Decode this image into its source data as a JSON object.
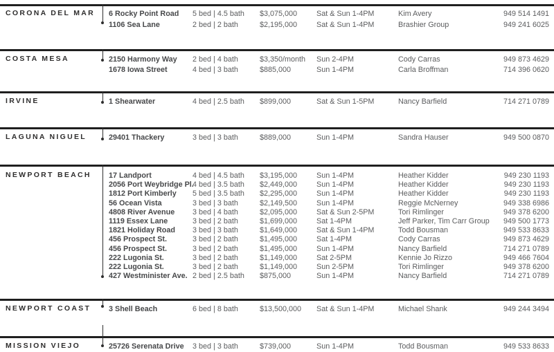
{
  "sections": [
    {
      "city": "CORONA DEL MAR",
      "listings": [
        {
          "address": "6 Rocky Point Road",
          "bedbath": "5 bed | 4.5 bath",
          "price": "$3,075,000",
          "time": "Sat & Sun 1-4PM",
          "agent": "Kim Avery",
          "phone": "949 514 1491"
        },
        {
          "address": "1106 Sea Lane",
          "bedbath": "2 bed | 2 bath",
          "price": "$2,195,000",
          "time": "Sat & Sun 1-4PM",
          "agent": "Brashier Group",
          "phone": "949 241 6025"
        }
      ]
    },
    {
      "city": "COSTA MESA",
      "listings": [
        {
          "address": "2150 Harmony Way",
          "bedbath": "2 bed | 4 bath",
          "price": "$3,350/month",
          "time": "Sun 2-4PM",
          "agent": "Cody Carras",
          "phone": "949 873 4629"
        },
        {
          "address": "1678 Iowa Street",
          "bedbath": "4 bed | 3 bath",
          "price": "$885,000",
          "time": "Sun 1-4PM",
          "agent": "Carla Broffman",
          "phone": "714 396 0620"
        }
      ]
    },
    {
      "city": "IRVINE",
      "listings": [
        {
          "address": "1 Shearwater",
          "bedbath": "4 bed | 2.5 bath",
          "price": "$899,000",
          "time": "Sat & Sun 1-5PM",
          "agent": "Nancy Barfield",
          "phone": "714 271 0789"
        }
      ]
    },
    {
      "city": "LAGUNA NIGUEL",
      "listings": [
        {
          "address": "29401 Thackery",
          "bedbath": "3 bed | 3 bath",
          "price": "$889,000",
          "time": "Sun 1-4PM",
          "agent": "Sandra Hauser",
          "phone": "949 500 0870"
        }
      ]
    },
    {
      "city": "NEWPORT BEACH",
      "listings": [
        {
          "address": "17 Landport",
          "bedbath": "4 bed | 4.5 bath",
          "price": "$3,195,000",
          "time": "Sun 1-4PM",
          "agent": "Heather Kidder",
          "phone": "949 230 1193"
        },
        {
          "address": "2056 Port Weybridge Pl.",
          "bedbath": "4 bed | 3.5 bath",
          "price": "$2,449,000",
          "time": "Sun 1-4PM",
          "agent": "Heather Kidder",
          "phone": "949 230 1193"
        },
        {
          "address": "1812 Port Kimberly",
          "bedbath": "5 bed | 3.5 bath",
          "price": "$2,295,000",
          "time": "Sun 1-4PM",
          "agent": "Heather Kidder",
          "phone": "949 230 1193"
        },
        {
          "address": "56 Ocean Vista",
          "bedbath": "3 bed | 3 bath",
          "price": "$2,149,500",
          "time": "Sun 1-4PM",
          "agent": "Reggie McNerney",
          "phone": "949 338 6986"
        },
        {
          "address": "4808 River Avenue",
          "bedbath": "3 bed | 4 bath",
          "price": "$2,095,000",
          "time": "Sat & Sun 2-5PM",
          "agent": "Tori Rimlinger",
          "phone": "949 378 6200"
        },
        {
          "address": "1119 Essex Lane",
          "bedbath": "3 bed | 2 bath",
          "price": "$1,699,000",
          "time": "Sat 1-4PM",
          "agent": "Jeff Parker, Tim Carr Group",
          "phone": "949 500 1773"
        },
        {
          "address": "1821 Holiday Road",
          "bedbath": "3 bed | 3 bath",
          "price": "$1,649,000",
          "time": "Sat & Sun 1-4PM",
          "agent": "Todd Bousman",
          "phone": "949 533 8633"
        },
        {
          "address": "456 Prospect St.",
          "bedbath": "3 bed | 2 bath",
          "price": "$1,495,000",
          "time": "Sat 1-4PM",
          "agent": "Cody Carras",
          "phone": "949 873 4629"
        },
        {
          "address": "456 Prospect St.",
          "bedbath": "3 bed | 2 bath",
          "price": "$1,495,000",
          "time": "Sun 1-4PM",
          "agent": "Nancy Barfield",
          "phone": "714 271 0789"
        },
        {
          "address": "222 Lugonia St.",
          "bedbath": "3 bed | 2 bath",
          "price": "$1,149,000",
          "time": "Sat 2-5PM",
          "agent": "Kennie Jo Rizzo",
          "phone": "949 466 7604"
        },
        {
          "address": "222 Lugonia St.",
          "bedbath": "3 bed | 2 bath",
          "price": "$1,149,000",
          "time": "Sun 2-5PM",
          "agent": "Tori Rimlinger",
          "phone": "949 378 6200"
        },
        {
          "address": "427 Westminister Ave.",
          "bedbath": "2 bed | 2.5 bath",
          "price": "$875,000",
          "time": "Sun 1-4PM",
          "agent": "Nancy Barfield",
          "phone": "714 271 0789"
        }
      ]
    },
    {
      "city": "NEWPORT COAST",
      "listings": [
        {
          "address": "3 Shell Beach",
          "bedbath": "6 bed | 8 bath",
          "price": "$13,500,000",
          "time": "Sat & Sun 1-4PM",
          "agent": "Michael Shank",
          "phone": "949 244 3494"
        }
      ]
    },
    {
      "city": "MISSION VIEJO",
      "listings": [
        {
          "address": "25726 Serenata Drive",
          "bedbath": "3 bed | 3 bath",
          "price": "$739,000",
          "time": "Sun 1-4PM",
          "agent": "Todd Bousman",
          "phone": "949 533 8633"
        }
      ]
    }
  ],
  "colors": {
    "rule": "#1f1f1f",
    "city_text": "#2e2d2d",
    "address_text": "#47484a",
    "body_text": "#5b5c5e"
  }
}
